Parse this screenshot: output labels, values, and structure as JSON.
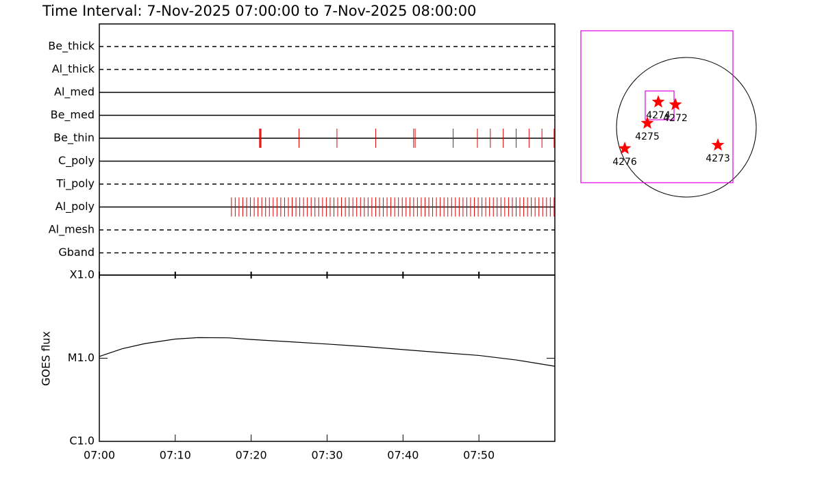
{
  "title": "Time Interval:  7-Nov-2025 07:00:00 to  7-Nov-2025 08:00:00",
  "chart_data": [
    {
      "type": "timeline",
      "xlim": [
        0,
        60
      ],
      "mark_color": "#e00000",
      "rows": [
        {
          "name": "Be_thick",
          "style": "dashed",
          "values": []
        },
        {
          "name": "Al_thick",
          "style": "dashed",
          "values": []
        },
        {
          "name": "Al_med",
          "style": "solid",
          "values": []
        },
        {
          "name": "Be_med",
          "style": "solid",
          "values": []
        },
        {
          "name": "Be_thin",
          "style": "solid",
          "values": [
            21.1,
            21.2,
            21.3,
            26.3,
            31.3,
            36.4,
            41.4,
            41.6,
            46.6,
            49.8,
            51.5,
            53.2,
            54.9,
            56.6,
            58.3,
            59.9
          ]
        },
        {
          "name": "C_poly",
          "style": "solid",
          "values": []
        },
        {
          "name": "Ti_poly",
          "style": "dashed",
          "values": []
        },
        {
          "name": "Al_poly",
          "style": "solid",
          "values": [
            17.4,
            17.9,
            18.4,
            18.9,
            19.4,
            19.9,
            20.4,
            20.9,
            21.4,
            21.9,
            22.4,
            22.9,
            23.4,
            23.9,
            24.4,
            24.9,
            25.4,
            25.9,
            26.4,
            26.9,
            27.4,
            27.9,
            28.4,
            28.9,
            29.4,
            29.9,
            30.4,
            30.9,
            31.4,
            31.9,
            32.4,
            32.9,
            33.4,
            33.9,
            34.4,
            34.9,
            35.4,
            35.9,
            36.4,
            36.9,
            37.4,
            37.9,
            38.4,
            38.9,
            39.4,
            39.9,
            40.4,
            40.9,
            41.4,
            41.9,
            42.4,
            42.9,
            43.4,
            43.9,
            44.4,
            44.9,
            45.4,
            45.9,
            46.4,
            46.9,
            47.4,
            47.9,
            48.4,
            48.9,
            49.4,
            49.9,
            50.4,
            50.9,
            51.4,
            51.9,
            52.4,
            52.9,
            53.4,
            53.9,
            54.4,
            54.9,
            55.4,
            55.9,
            56.4,
            56.9,
            57.4,
            57.9,
            58.4,
            58.9,
            59.4,
            59.9
          ]
        },
        {
          "name": "Al_mesh",
          "style": "dashed",
          "values": []
        },
        {
          "name": "Gband",
          "style": "dashed",
          "values": []
        }
      ]
    },
    {
      "type": "line",
      "y_label": "GOES flux",
      "log_scale": true,
      "color": "#000000",
      "x": [
        0,
        3,
        6,
        10,
        13,
        17,
        20,
        25,
        30,
        35,
        40,
        45,
        50,
        55,
        60
      ],
      "values": [
        1.05e-05,
        1.3e-05,
        1.5e-05,
        1.7e-05,
        1.77e-05,
        1.76e-05,
        1.68e-05,
        1.58e-05,
        1.48e-05,
        1.38e-05,
        1.27e-05,
        1.17e-05,
        1.08e-05,
        9.5e-06,
        8e-06
      ],
      "xlim": [
        0,
        60
      ],
      "xticks": [
        {
          "value": 0,
          "label": "07:00"
        },
        {
          "value": 10,
          "label": "07:10"
        },
        {
          "value": 20,
          "label": "07:20"
        },
        {
          "value": 30,
          "label": "07:30"
        },
        {
          "value": 40,
          "label": "07:40"
        },
        {
          "value": 50,
          "label": "07:50"
        }
      ],
      "ylim": [
        1e-06,
        0.0001
      ],
      "yticks": [
        {
          "value": 1e-06,
          "label": "C1.0"
        },
        {
          "value": 1e-05,
          "label": "M1.0"
        },
        {
          "value": 0.0001,
          "label": "X1.0"
        }
      ]
    },
    {
      "type": "map",
      "sun_radius": 975,
      "star_color": "#ff0000",
      "box_color": "#e000e0",
      "fov": {
        "x": [
          -1472,
          650
        ],
        "y": [
          -774,
          1348
        ]
      },
      "subfield": {
        "x": [
          -574,
          -172
        ],
        "y": [
          105,
          507
        ]
      },
      "regions": [
        {
          "label": "4274",
          "x": -392,
          "y": 354
        },
        {
          "label": "4272",
          "x": -153,
          "y": 316
        },
        {
          "label": "4275",
          "x": -545,
          "y": 57
        },
        {
          "label": "4276",
          "x": -860,
          "y": -296
        },
        {
          "label": "4273",
          "x": 440,
          "y": -249
        }
      ]
    }
  ]
}
